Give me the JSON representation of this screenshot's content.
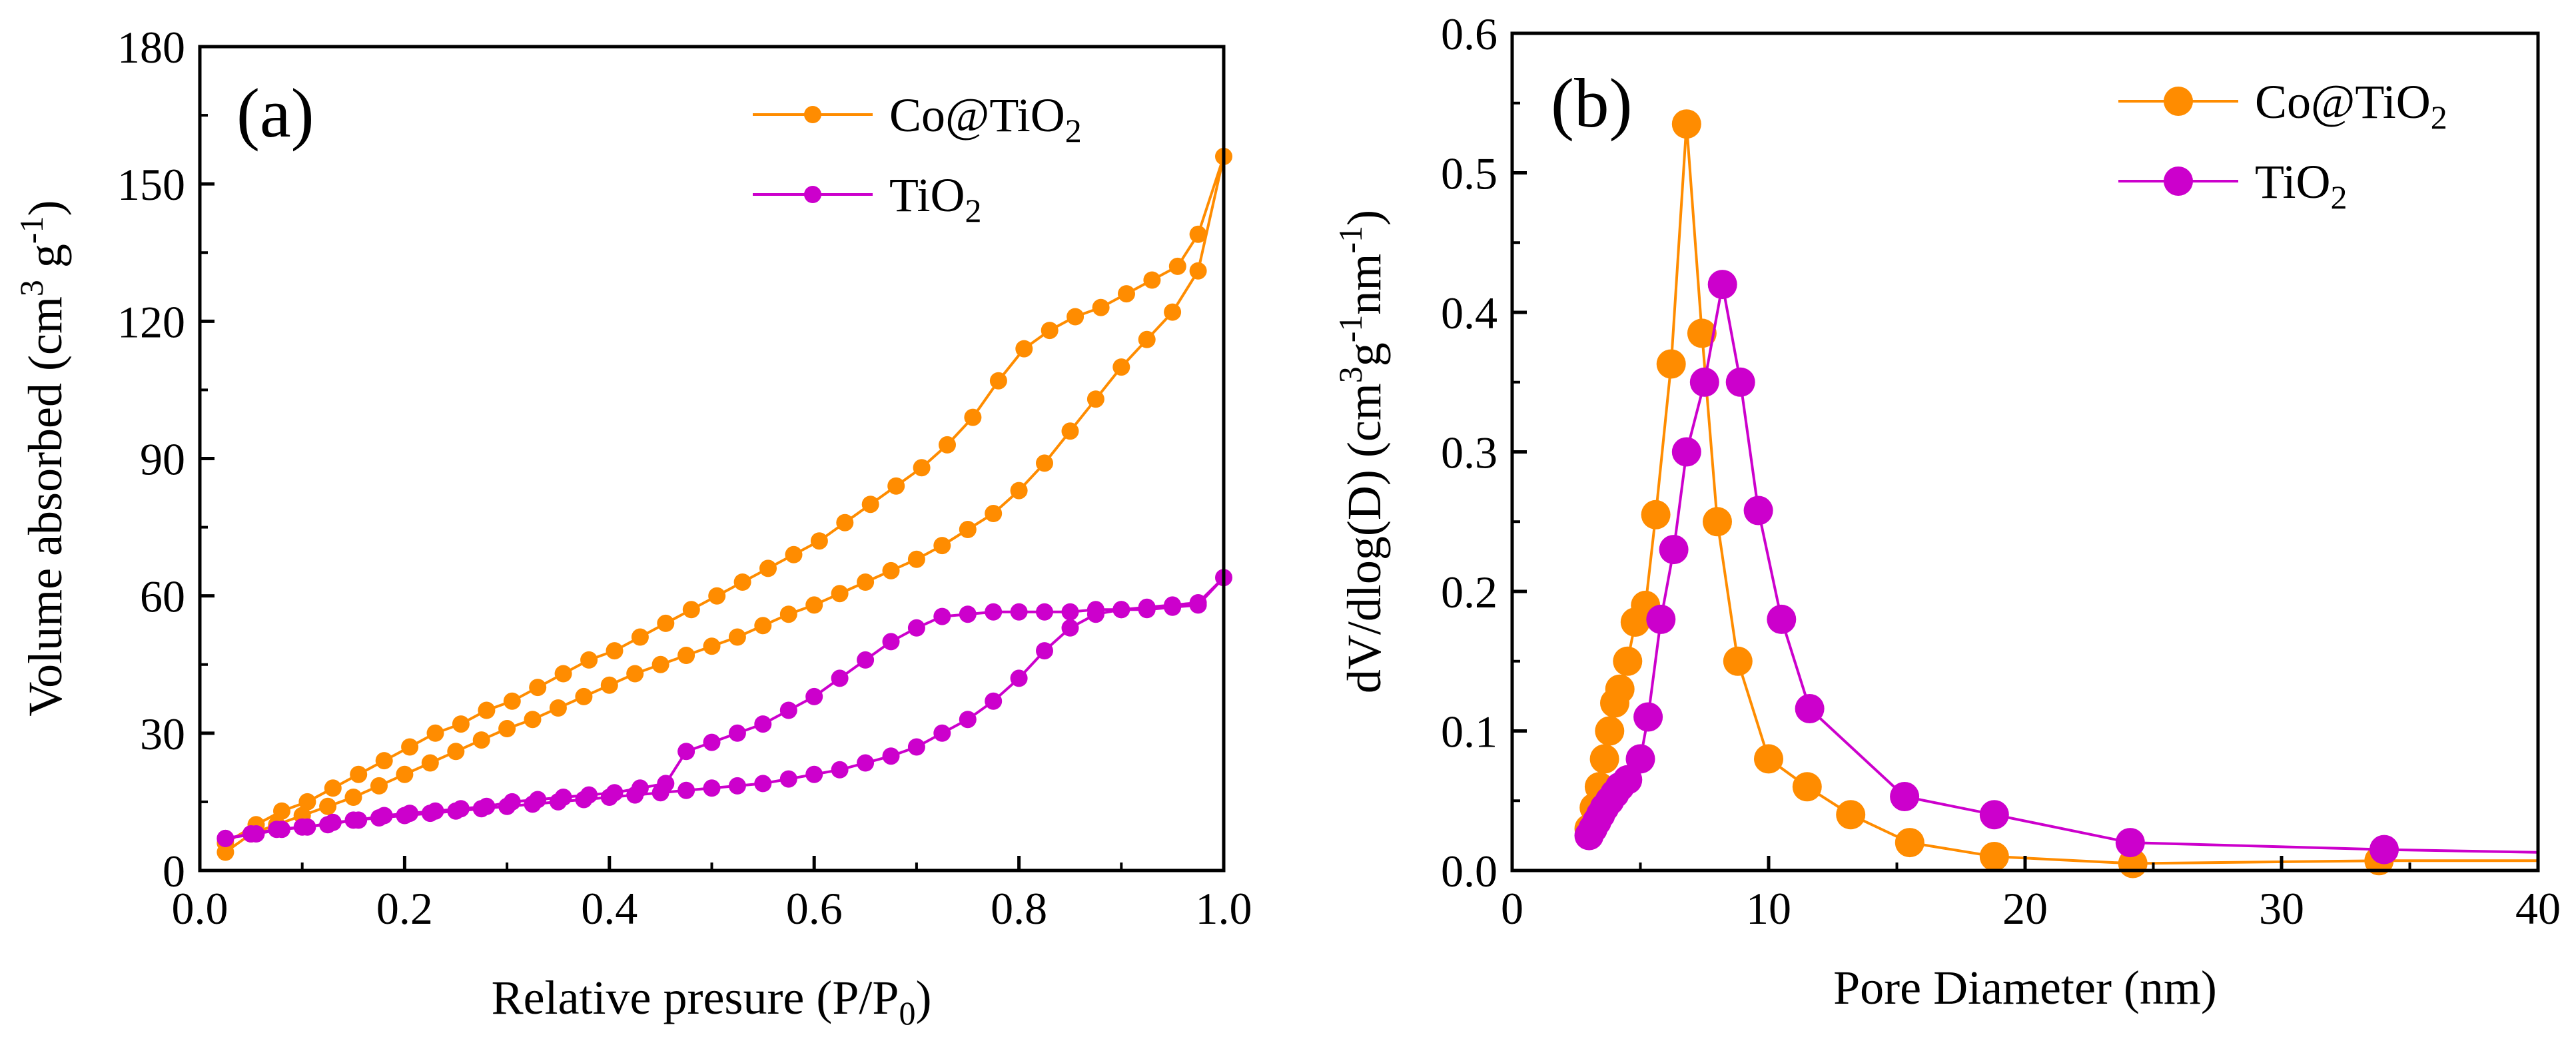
{
  "colors": {
    "co_tio2": "#FF8C00",
    "tio2": "#CC00CC",
    "axis": "#000000"
  },
  "chart_data": [
    {
      "type": "line",
      "panel_label": "(a)",
      "xlabel": "Relative presure (P/P0)",
      "xlabel_main": "Relative presure (P/P",
      "xlabel_sub": "0",
      "xlabel_tail": ")",
      "ylabel": "Volume absorbed (cm3 g-1)",
      "ylabel_main": "Volume absorbed (cm",
      "ylabel_sup1": "3",
      "ylabel_mid": " g",
      "ylabel_sup2": "-1",
      "ylabel_tail": ")",
      "xlim": [
        0.0,
        1.0
      ],
      "ylim": [
        0,
        180
      ],
      "xticks": [
        0.0,
        0.2,
        0.4,
        0.6,
        0.8,
        1.0
      ],
      "yticks": [
        0,
        30,
        60,
        90,
        120,
        150,
        180
      ],
      "xtick_labels": [
        "0.0",
        "0.2",
        "0.4",
        "0.6",
        "0.8",
        "1.0"
      ],
      "ytick_labels": [
        "0",
        "30",
        "60",
        "90",
        "120",
        "150",
        "180"
      ],
      "legend": [
        {
          "main": "Co@TiO",
          "sub": "2",
          "name": "Co@TiO2"
        },
        {
          "main": "TiO",
          "sub": "2",
          "name": "TiO2"
        }
      ],
      "legend_position": "top-right",
      "series": [
        {
          "name": "Co@TiO2",
          "color_key": "co_tio2",
          "points": [
            [
              0.025,
              4
            ],
            [
              0.05,
              8
            ],
            [
              0.075,
              10
            ],
            [
              0.1,
              12
            ],
            [
              0.125,
              14
            ],
            [
              0.15,
              16
            ],
            [
              0.175,
              18.5
            ],
            [
              0.2,
              21
            ],
            [
              0.225,
              23.5
            ],
            [
              0.25,
              26
            ],
            [
              0.275,
              28.5
            ],
            [
              0.3,
              31
            ],
            [
              0.325,
              33
            ],
            [
              0.35,
              35.5
            ],
            [
              0.375,
              38
            ],
            [
              0.4,
              40.5
            ],
            [
              0.425,
              43
            ],
            [
              0.45,
              45
            ],
            [
              0.475,
              47
            ],
            [
              0.5,
              49
            ],
            [
              0.525,
              51
            ],
            [
              0.55,
              53.5
            ],
            [
              0.575,
              56
            ],
            [
              0.6,
              58
            ],
            [
              0.625,
              60.5
            ],
            [
              0.65,
              63
            ],
            [
              0.675,
              65.5
            ],
            [
              0.7,
              68
            ],
            [
              0.725,
              71
            ],
            [
              0.75,
              74.5
            ],
            [
              0.775,
              78
            ],
            [
              0.8,
              83
            ],
            [
              0.825,
              89
            ],
            [
              0.85,
              96
            ],
            [
              0.875,
              103
            ],
            [
              0.9,
              110
            ],
            [
              0.925,
              116
            ],
            [
              0.95,
              122
            ],
            [
              0.975,
              131
            ],
            [
              1.0,
              156
            ],
            [
              0.975,
              139
            ],
            [
              0.955,
              132
            ],
            [
              0.93,
              129
            ],
            [
              0.905,
              126
            ],
            [
              0.88,
              123
            ],
            [
              0.855,
              121
            ],
            [
              0.83,
              118
            ],
            [
              0.805,
              114
            ],
            [
              0.78,
              107
            ],
            [
              0.755,
              99
            ],
            [
              0.73,
              93
            ],
            [
              0.705,
              88
            ],
            [
              0.68,
              84
            ],
            [
              0.655,
              80
            ],
            [
              0.63,
              76
            ],
            [
              0.605,
              72
            ],
            [
              0.58,
              69
            ],
            [
              0.555,
              66
            ],
            [
              0.53,
              63
            ],
            [
              0.505,
              60
            ],
            [
              0.48,
              57
            ],
            [
              0.455,
              54
            ],
            [
              0.43,
              51
            ],
            [
              0.405,
              48
            ],
            [
              0.38,
              46
            ],
            [
              0.355,
              43
            ],
            [
              0.33,
              40
            ],
            [
              0.305,
              37
            ],
            [
              0.28,
              35
            ],
            [
              0.255,
              32
            ],
            [
              0.23,
              30
            ],
            [
              0.205,
              27
            ],
            [
              0.18,
              24
            ],
            [
              0.155,
              21
            ],
            [
              0.13,
              18
            ],
            [
              0.105,
              15
            ],
            [
              0.08,
              13
            ],
            [
              0.055,
              10
            ],
            [
              0.025,
              6
            ]
          ]
        },
        {
          "name": "TiO2",
          "color_key": "tio2",
          "points": [
            [
              0.025,
              7
            ],
            [
              0.05,
              8
            ],
            [
              0.075,
              9
            ],
            [
              0.1,
              9.5
            ],
            [
              0.125,
              10
            ],
            [
              0.15,
              11
            ],
            [
              0.175,
              11.5
            ],
            [
              0.2,
              12
            ],
            [
              0.225,
              12.5
            ],
            [
              0.25,
              13
            ],
            [
              0.275,
              13.5
            ],
            [
              0.3,
              14
            ],
            [
              0.325,
              14.5
            ],
            [
              0.35,
              15
            ],
            [
              0.375,
              15.5
            ],
            [
              0.4,
              16
            ],
            [
              0.425,
              16.5
            ],
            [
              0.45,
              17
            ],
            [
              0.475,
              17.5
            ],
            [
              0.5,
              18
            ],
            [
              0.525,
              18.5
            ],
            [
              0.55,
              19
            ],
            [
              0.575,
              20
            ],
            [
              0.6,
              21
            ],
            [
              0.625,
              22
            ],
            [
              0.65,
              23.5
            ],
            [
              0.675,
              25
            ],
            [
              0.7,
              27
            ],
            [
              0.725,
              30
            ],
            [
              0.75,
              33
            ],
            [
              0.775,
              37
            ],
            [
              0.8,
              42
            ],
            [
              0.825,
              48
            ],
            [
              0.85,
              53
            ],
            [
              0.875,
              56
            ],
            [
              0.9,
              57
            ],
            [
              0.925,
              57.5
            ],
            [
              0.95,
              58
            ],
            [
              0.975,
              58.5
            ],
            [
              1.0,
              64
            ],
            [
              0.975,
              58
            ],
            [
              0.95,
              57.5
            ],
            [
              0.925,
              57
            ],
            [
              0.9,
              57
            ],
            [
              0.875,
              57
            ],
            [
              0.85,
              56.5
            ],
            [
              0.825,
              56.5
            ],
            [
              0.8,
              56.5
            ],
            [
              0.775,
              56.5
            ],
            [
              0.75,
              56
            ],
            [
              0.725,
              55.5
            ],
            [
              0.7,
              53
            ],
            [
              0.675,
              50
            ],
            [
              0.65,
              46
            ],
            [
              0.625,
              42
            ],
            [
              0.6,
              38
            ],
            [
              0.575,
              35
            ],
            [
              0.55,
              32
            ],
            [
              0.525,
              30
            ],
            [
              0.5,
              28
            ],
            [
              0.475,
              26
            ],
            [
              0.455,
              19
            ],
            [
              0.43,
              18
            ],
            [
              0.405,
              17
            ],
            [
              0.38,
              16.5
            ],
            [
              0.355,
              16
            ],
            [
              0.33,
              15.5
            ],
            [
              0.305,
              15
            ],
            [
              0.28,
              14
            ],
            [
              0.255,
              13.5
            ],
            [
              0.23,
              13
            ],
            [
              0.205,
              12.5
            ],
            [
              0.18,
              12
            ],
            [
              0.155,
              11
            ],
            [
              0.13,
              10.5
            ],
            [
              0.105,
              9.5
            ],
            [
              0.08,
              9
            ],
            [
              0.055,
              8
            ],
            [
              0.025,
              7
            ]
          ]
        }
      ]
    },
    {
      "type": "line",
      "panel_label": "(b)",
      "xlabel": "Pore Diameter (nm)",
      "ylabel": "dV/dlog(D) (cm3g-1nm-1)",
      "ylabel_main": "dV/dlog(D) (cm",
      "ylabel_sup1": "3",
      "ylabel_mid": "g",
      "ylabel_sup2": "-1",
      "ylabel_mid2": "nm",
      "ylabel_sup3": "-1",
      "ylabel_tail": ")",
      "xlim": [
        0,
        40
      ],
      "ylim": [
        0.0,
        0.6
      ],
      "xticks": [
        0,
        10,
        20,
        30,
        40
      ],
      "yticks": [
        0.0,
        0.1,
        0.2,
        0.3,
        0.4,
        0.5,
        0.6
      ],
      "xtick_labels": [
        "0",
        "10",
        "20",
        "30",
        "40"
      ],
      "ytick_labels": [
        "0.0",
        "0.1",
        "0.2",
        "0.3",
        "0.4",
        "0.5",
        "0.6"
      ],
      "legend": [
        {
          "main": "Co@TiO",
          "sub": "2",
          "name": "Co@TiO2"
        },
        {
          "main": "TiO",
          "sub": "2",
          "name": "TiO2"
        }
      ],
      "legend_position": "top-right",
      "series": [
        {
          "name": "Co@TiO2",
          "color_key": "co_tio2",
          "points": [
            [
              3.0,
              0.03
            ],
            [
              3.2,
              0.045
            ],
            [
              3.4,
              0.06
            ],
            [
              3.6,
              0.08
            ],
            [
              3.8,
              0.1
            ],
            [
              4.0,
              0.12
            ],
            [
              4.2,
              0.13
            ],
            [
              4.5,
              0.15
            ],
            [
              4.8,
              0.178
            ],
            [
              5.2,
              0.19
            ],
            [
              5.6,
              0.255
            ],
            [
              6.2,
              0.363
            ],
            [
              6.8,
              0.535
            ],
            [
              7.4,
              0.385
            ],
            [
              8.0,
              0.25
            ],
            [
              8.8,
              0.15
            ],
            [
              10.0,
              0.08
            ],
            [
              11.5,
              0.06
            ],
            [
              13.2,
              0.04
            ],
            [
              15.5,
              0.02
            ],
            [
              18.8,
              0.01
            ],
            [
              24.2,
              0.005
            ],
            [
              33.8,
              0.007
            ],
            [
              40,
              0.007
            ]
          ]
        },
        {
          "name": "TiO2",
          "color_key": "tio2",
          "points": [
            [
              3.0,
              0.025
            ],
            [
              3.15,
              0.03
            ],
            [
              3.3,
              0.035
            ],
            [
              3.45,
              0.04
            ],
            [
              3.6,
              0.045
            ],
            [
              3.8,
              0.05
            ],
            [
              4.0,
              0.055
            ],
            [
              4.2,
              0.06
            ],
            [
              4.5,
              0.065
            ],
            [
              5.0,
              0.08
            ],
            [
              5.3,
              0.11
            ],
            [
              5.8,
              0.18
            ],
            [
              6.3,
              0.23
            ],
            [
              6.8,
              0.3
            ],
            [
              7.5,
              0.35
            ],
            [
              8.2,
              0.42
            ],
            [
              8.9,
              0.35
            ],
            [
              9.6,
              0.258
            ],
            [
              10.5,
              0.18
            ],
            [
              11.6,
              0.116
            ],
            [
              15.3,
              0.053
            ],
            [
              18.8,
              0.04
            ],
            [
              24.1,
              0.02
            ],
            [
              34.0,
              0.015
            ],
            [
              40,
              0.013
            ]
          ]
        }
      ]
    }
  ]
}
